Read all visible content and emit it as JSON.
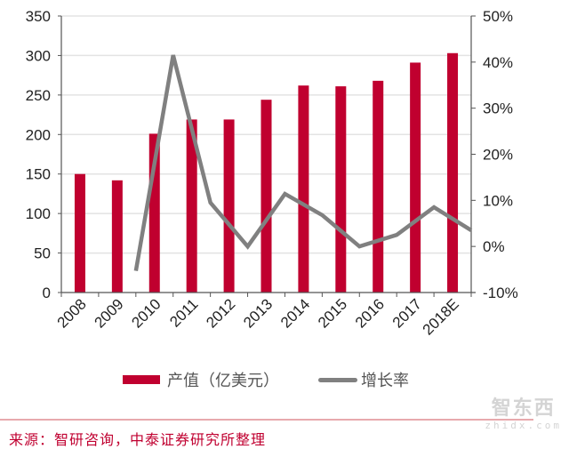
{
  "chart_data": {
    "type": "bar+line",
    "title": "",
    "categories": [
      "2008",
      "2009",
      "2010",
      "2011",
      "2012",
      "2013",
      "2014",
      "2015",
      "2016",
      "2017",
      "2018E"
    ],
    "series": [
      {
        "name": "产值（亿美元）",
        "type": "bar",
        "axis": "left",
        "color": "#c0002f",
        "values": [
          150,
          142,
          201,
          219,
          219,
          244,
          262,
          261,
          268,
          291,
          303
        ]
      },
      {
        "name": "增长率",
        "type": "line",
        "axis": "right",
        "color": "#808080",
        "values": [
          null,
          -5.3,
          41.5,
          9.5,
          0.0,
          11.4,
          6.8,
          0.0,
          2.5,
          8.5,
          3.5
        ],
        "unit": "%"
      }
    ],
    "left_axis": {
      "min": 0,
      "max": 350,
      "ticks": [
        0,
        50,
        100,
        150,
        200,
        250,
        300,
        350
      ],
      "label": ""
    },
    "right_axis": {
      "min": -10,
      "max": 50,
      "ticks": [
        -10,
        0,
        10,
        20,
        30,
        40,
        50
      ],
      "tick_labels": [
        "-10%",
        "0%",
        "10%",
        "20%",
        "30%",
        "40%",
        "50%"
      ],
      "label": ""
    },
    "xlabel": "",
    "grid": "horizontal",
    "legend_position": "bottom"
  },
  "legend": {
    "bar_label": "产值（亿美元）",
    "line_label": "增长率"
  },
  "source": "来源：智研咨询，中泰证券研究所整理",
  "watermark": {
    "cn": "智东西",
    "en": "zhidx.com"
  }
}
